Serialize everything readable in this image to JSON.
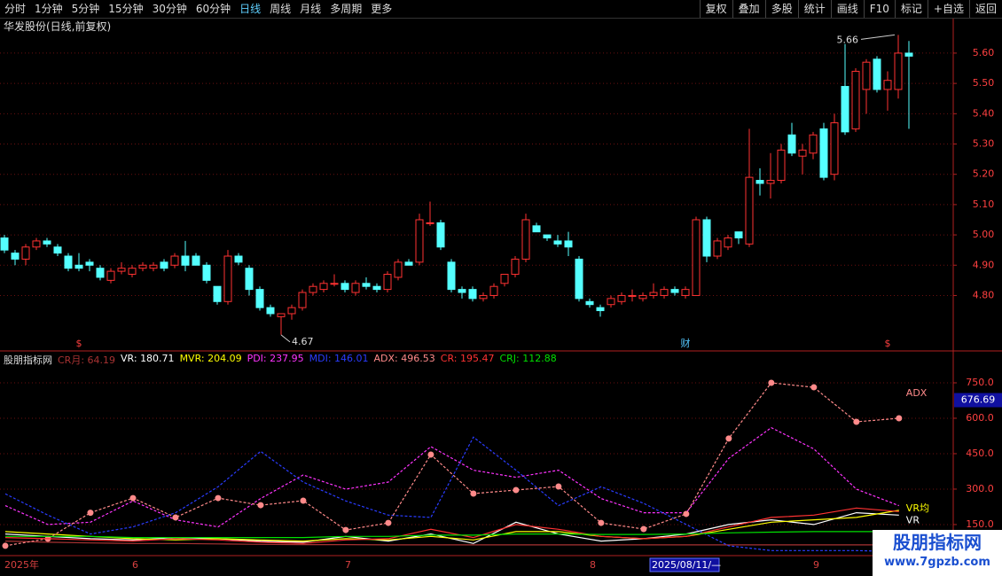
{
  "toolbar": {
    "left": [
      "分时",
      "1分钟",
      "5分钟",
      "15分钟",
      "30分钟",
      "60分钟",
      "日线",
      "周线",
      "月线",
      "多周期",
      "更多"
    ],
    "right": [
      "复权",
      "叠加",
      "多股",
      "统计",
      "画线",
      "F10",
      "标记",
      "+自选",
      "返回"
    ]
  },
  "watermark": [
    "股朋指标网",
    "www.7gpzb.com"
  ],
  "chart_data": [
    {
      "type": "candlestick",
      "title": "华发股份(日线,前复权)",
      "up_color": "#ff3232",
      "down_color": "#54ffff",
      "ylim": [
        4.62,
        5.67
      ],
      "yticks": [
        {
          "value": 4.8,
          "label": "4.80"
        },
        {
          "value": 4.9,
          "label": "4.90"
        },
        {
          "value": 5.0,
          "label": "5.00"
        },
        {
          "value": 5.1,
          "label": "5.10"
        },
        {
          "value": 5.2,
          "label": "5.20"
        },
        {
          "value": 5.3,
          "label": "5.30"
        },
        {
          "value": 5.4,
          "label": "5.40"
        },
        {
          "value": 5.5,
          "label": "5.50"
        },
        {
          "value": 5.6,
          "label": "5.60"
        }
      ],
      "grid": true,
      "categories": [
        "2025年",
        null,
        null,
        null,
        null,
        null,
        null,
        null,
        null,
        null,
        null,
        null,
        "6",
        null,
        null,
        null,
        null,
        null,
        null,
        null,
        null,
        null,
        null,
        null,
        null,
        null,
        null,
        null,
        null,
        null,
        null,
        null,
        "7",
        null,
        null,
        null,
        null,
        null,
        null,
        null,
        null,
        null,
        null,
        null,
        null,
        null,
        null,
        null,
        null,
        null,
        null,
        null,
        null,
        null,
        null,
        "8",
        null,
        null,
        null,
        null,
        null,
        null,
        null,
        null,
        null,
        null,
        null,
        null,
        null,
        null,
        null,
        null,
        null,
        null,
        null,
        null,
        "9",
        null,
        null,
        null,
        null,
        null,
        null,
        null,
        null,
        null
      ],
      "cursor_date": {
        "label": "2025/08/11/—",
        "index": 61
      },
      "events": [
        {
          "label": "$",
          "index": 7
        },
        {
          "label": "财",
          "index": 64
        },
        {
          "label": "$",
          "index": 83
        }
      ],
      "annotations": [
        {
          "label": "5.66",
          "index": 84,
          "value": 5.66,
          "side": "high"
        },
        {
          "label": "4.67",
          "index": 26,
          "value": 4.67,
          "side": "low"
        }
      ],
      "values": [
        [
          4.99,
          5.0,
          4.94,
          4.95
        ],
        [
          4.94,
          4.95,
          4.9,
          4.92
        ],
        [
          4.92,
          4.97,
          4.9,
          4.96
        ],
        [
          4.96,
          4.99,
          4.95,
          4.98
        ],
        [
          4.98,
          4.99,
          4.96,
          4.97
        ],
        [
          4.96,
          4.97,
          4.93,
          4.94
        ],
        [
          4.93,
          4.94,
          4.88,
          4.89
        ],
        [
          4.9,
          4.94,
          4.88,
          4.89
        ],
        [
          4.91,
          4.92,
          4.88,
          4.9
        ],
        [
          4.89,
          4.9,
          4.85,
          4.86
        ],
        [
          4.85,
          4.89,
          4.84,
          4.88
        ],
        [
          4.88,
          4.91,
          4.87,
          4.89
        ],
        [
          4.87,
          4.9,
          4.86,
          4.89
        ],
        [
          4.89,
          4.91,
          4.88,
          4.9
        ],
        [
          4.89,
          4.91,
          4.88,
          4.9
        ],
        [
          4.91,
          4.92,
          4.88,
          4.89
        ],
        [
          4.9,
          4.94,
          4.89,
          4.93
        ],
        [
          4.93,
          4.98,
          4.88,
          4.9
        ],
        [
          4.93,
          4.94,
          4.9,
          4.9
        ],
        [
          4.9,
          4.91,
          4.84,
          4.85
        ],
        [
          4.83,
          4.83,
          4.77,
          4.78
        ],
        [
          4.78,
          4.95,
          4.77,
          4.93
        ],
        [
          4.93,
          4.94,
          4.9,
          4.91
        ],
        [
          4.89,
          4.9,
          4.8,
          4.82
        ],
        [
          4.82,
          4.83,
          4.75,
          4.76
        ],
        [
          4.76,
          4.77,
          4.73,
          4.74
        ],
        [
          4.73,
          4.74,
          4.67,
          4.74
        ],
        [
          4.74,
          4.77,
          4.72,
          4.76
        ],
        [
          4.76,
          4.82,
          4.75,
          4.81
        ],
        [
          4.81,
          4.84,
          4.8,
          4.83
        ],
        [
          4.82,
          4.85,
          4.81,
          4.84
        ],
        [
          4.84,
          4.87,
          4.83,
          4.84
        ],
        [
          4.84,
          4.85,
          4.81,
          4.82
        ],
        [
          4.81,
          4.85,
          4.8,
          4.84
        ],
        [
          4.84,
          4.86,
          4.82,
          4.83
        ],
        [
          4.83,
          4.84,
          4.81,
          4.82
        ],
        [
          4.82,
          4.88,
          4.81,
          4.87
        ],
        [
          4.86,
          4.92,
          4.85,
          4.91
        ],
        [
          4.91,
          4.92,
          4.9,
          4.9
        ],
        [
          4.91,
          5.07,
          4.9,
          5.05
        ],
        [
          5.04,
          5.11,
          5.03,
          5.04
        ],
        [
          5.04,
          5.05,
          4.95,
          4.96
        ],
        [
          4.91,
          4.92,
          4.81,
          4.82
        ],
        [
          4.82,
          4.83,
          4.79,
          4.81
        ],
        [
          4.82,
          4.83,
          4.78,
          4.79
        ],
        [
          4.79,
          4.81,
          4.78,
          4.8
        ],
        [
          4.8,
          4.84,
          4.79,
          4.83
        ],
        [
          4.84,
          4.87,
          4.83,
          4.87
        ],
        [
          4.87,
          4.93,
          4.86,
          4.92
        ],
        [
          4.92,
          5.07,
          4.91,
          5.05
        ],
        [
          5.03,
          5.04,
          5.01,
          5.01
        ],
        [
          5.0,
          5.0,
          4.98,
          4.99
        ],
        [
          4.98,
          5.0,
          4.96,
          4.97
        ],
        [
          4.98,
          5.01,
          4.93,
          4.96
        ],
        [
          4.92,
          4.93,
          4.78,
          4.79
        ],
        [
          4.78,
          4.79,
          4.76,
          4.77
        ],
        [
          4.76,
          4.77,
          4.73,
          4.75
        ],
        [
          4.77,
          4.8,
          4.76,
          4.79
        ],
        [
          4.78,
          4.81,
          4.77,
          4.8
        ],
        [
          4.8,
          4.82,
          4.78,
          4.8
        ],
        [
          4.79,
          4.81,
          4.78,
          4.8
        ],
        [
          4.8,
          4.84,
          4.79,
          4.81
        ],
        [
          4.8,
          4.83,
          4.79,
          4.82
        ],
        [
          4.82,
          4.83,
          4.8,
          4.81
        ],
        [
          4.8,
          4.83,
          4.79,
          4.82
        ],
        [
          4.8,
          5.06,
          4.8,
          5.05
        ],
        [
          5.05,
          5.06,
          4.91,
          4.93
        ],
        [
          4.93,
          4.99,
          4.92,
          4.98
        ],
        [
          4.96,
          5.0,
          4.95,
          4.99
        ],
        [
          5.01,
          5.01,
          4.97,
          4.99
        ],
        [
          4.97,
          5.35,
          4.96,
          5.19
        ],
        [
          5.18,
          5.22,
          5.13,
          5.17
        ],
        [
          5.17,
          5.27,
          5.12,
          5.18
        ],
        [
          5.18,
          5.3,
          5.17,
          5.28
        ],
        [
          5.33,
          5.37,
          5.26,
          5.27
        ],
        [
          5.26,
          5.3,
          5.2,
          5.28
        ],
        [
          5.27,
          5.34,
          5.25,
          5.33
        ],
        [
          5.35,
          5.37,
          5.18,
          5.19
        ],
        [
          5.2,
          5.4,
          5.18,
          5.37
        ],
        [
          5.49,
          5.63,
          5.33,
          5.34
        ],
        [
          5.35,
          5.55,
          5.34,
          5.54
        ],
        [
          5.48,
          5.58,
          5.4,
          5.57
        ],
        [
          5.58,
          5.59,
          5.47,
          5.48
        ],
        [
          5.48,
          5.54,
          5.41,
          5.51
        ],
        [
          5.48,
          5.66,
          5.45,
          5.6
        ],
        [
          5.6,
          5.64,
          5.35,
          5.59
        ]
      ]
    },
    {
      "type": "line",
      "title": "股朋指标网",
      "x": [
        0,
        4,
        8,
        12,
        16,
        20,
        24,
        28,
        32,
        36,
        40,
        44,
        48,
        52,
        56,
        60,
        64,
        68,
        72,
        76,
        80,
        84
      ],
      "xlim": [
        -0.5,
        89.1
      ],
      "ylim": [
        26,
        870
      ],
      "yticks": [
        {
          "value": 150,
          "label": "150.0"
        },
        {
          "value": 300,
          "label": "300.0"
        },
        {
          "value": 450,
          "label": "450.0"
        },
        {
          "value": 600,
          "label": "600.0"
        },
        {
          "value": 750,
          "label": "750.0"
        }
      ],
      "grid": true,
      "cursor_value": {
        "value": 676.69,
        "label": "676.69"
      },
      "series": [
        {
          "label": "CR月: 64.19",
          "color": "#a83232",
          "values": [
            80,
            75,
            72,
            70,
            70,
            68,
            66,
            65,
            65,
            64,
            64,
            64,
            64,
            64,
            64,
            64,
            64,
            64,
            64,
            64,
            64,
            64
          ]
        },
        {
          "label": "VR: 180.71",
          "color": "#ffffff",
          "end_label": "VR",
          "values": [
            110,
            100,
            90,
            85,
            95,
            90,
            80,
            75,
            100,
            80,
            110,
            70,
            160,
            110,
            80,
            90,
            110,
            150,
            170,
            150,
            200,
            190
          ]
        },
        {
          "label": "MVR: 204.09",
          "color": "#ffff00",
          "end_label": "VR均",
          "values": [
            120,
            110,
            100,
            90,
            85,
            90,
            85,
            80,
            90,
            85,
            100,
            85,
            120,
            120,
            100,
            90,
            100,
            130,
            160,
            170,
            180,
            210
          ]
        },
        {
          "label": "PDI: 237.95",
          "color": "#ff33ff",
          "dashed": true,
          "values": [
            230,
            150,
            160,
            250,
            170,
            140,
            260,
            360,
            300,
            330,
            480,
            380,
            350,
            380,
            260,
            200,
            200,
            430,
            560,
            470,
            300,
            230
          ]
        },
        {
          "label": "MDI: 146.01",
          "color": "#2a3cff",
          "dashed": true,
          "values": [
            280,
            190,
            110,
            140,
            200,
            310,
            460,
            330,
            250,
            190,
            180,
            520,
            380,
            230,
            310,
            240,
            150,
            60,
            40,
            40,
            40,
            35
          ]
        },
        {
          "label": "ADX: 496.53",
          "color": "#ff8a8a",
          "dashed": true,
          "markers": true,
          "end_label": "ADX",
          "values": [
            60,
            90,
            200,
            262,
            180,
            262,
            232,
            251,
            127,
            157,
            446,
            281,
            296,
            311,
            157,
            131,
            195,
            514,
            750,
            731,
            585,
            600
          ]
        },
        {
          "label": "CR: 195.47",
          "color": "#ff3232",
          "values": [
            95,
            90,
            85,
            80,
            90,
            85,
            75,
            70,
            85,
            90,
            130,
            95,
            150,
            130,
            100,
            90,
            100,
            140,
            180,
            190,
            220,
            205
          ]
        },
        {
          "label": "CRJ: 112.88",
          "color": "#00e000",
          "values": [
            100,
            100,
            100,
            95,
            95,
            95,
            95,
            95,
            100,
            100,
            105,
            105,
            110,
            110,
            108,
            108,
            110,
            115,
            118,
            120,
            120,
            120
          ]
        }
      ]
    }
  ]
}
